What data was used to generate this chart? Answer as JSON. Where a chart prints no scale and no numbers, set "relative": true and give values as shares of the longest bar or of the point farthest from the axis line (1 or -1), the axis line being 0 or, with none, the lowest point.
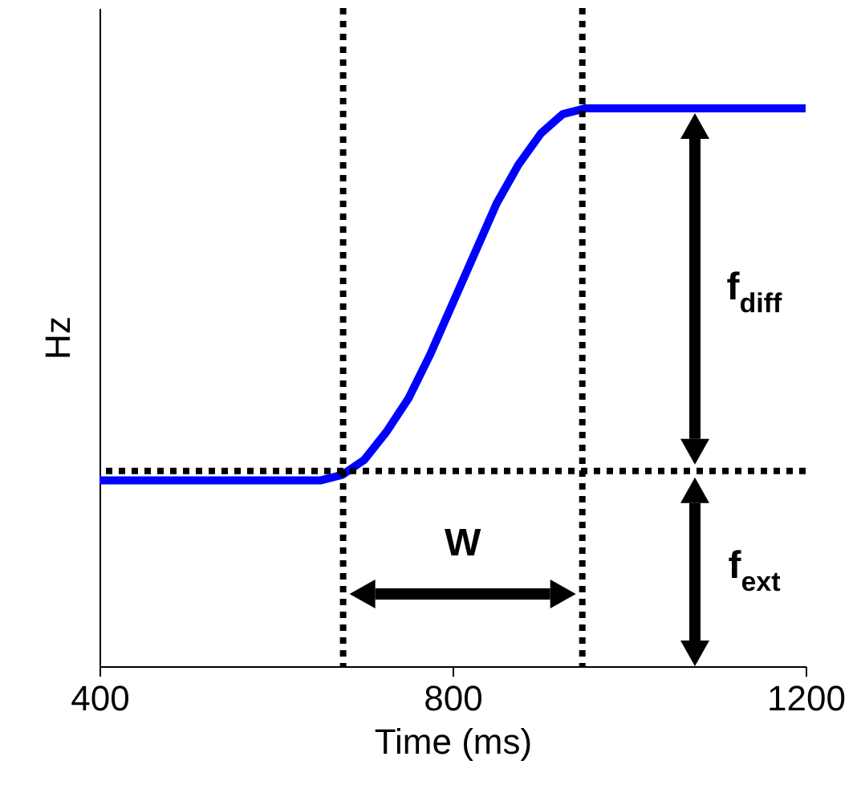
{
  "chart_data": {
    "type": "line",
    "relative": true,
    "xlabel": "Time (ms)",
    "ylabel": "Hz",
    "xlim": [
      400,
      1200
    ],
    "xticks": [
      400,
      800,
      1200
    ],
    "grid": false,
    "marker": "none",
    "line_style": "solid",
    "series": [
      {
        "color": "#0000ff",
        "x": [
          400,
          650,
          675,
          700,
          725,
          750,
          775,
          800,
          825,
          850,
          875,
          900,
          925,
          950,
          1200
        ],
        "values": [
          0.333,
          0.333,
          0.343,
          0.37,
          0.42,
          0.48,
          0.56,
          0.65,
          0.74,
          0.83,
          0.9,
          0.955,
          0.99,
          1,
          1
        ]
      }
    ],
    "ref_lines": [
      {
        "axis": "x",
        "value": 676,
        "color": "#000000",
        "line_style": "dotted"
      },
      {
        "axis": "x",
        "value": 947,
        "color": "#000000",
        "line_style": "dotted"
      },
      {
        "axis": "y",
        "value": 0.35,
        "color": "#000000",
        "line_style": "dotted"
      }
    ],
    "annotations": [
      "W",
      "f$_{diff}$",
      "f$_{ext}$"
    ]
  }
}
